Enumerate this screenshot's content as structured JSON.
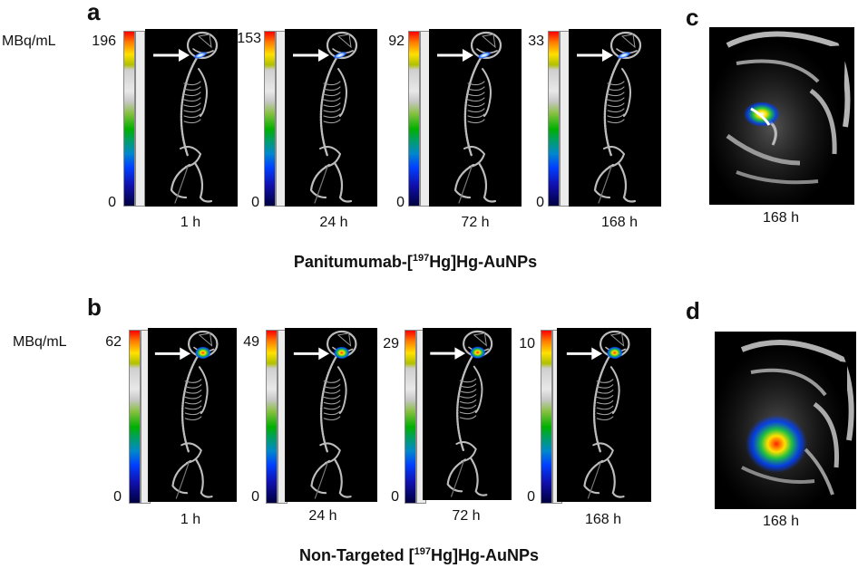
{
  "panels": {
    "a": {
      "letter": "a",
      "unit": "MBq/mL",
      "scans": [
        {
          "max": "196",
          "min": "0",
          "time": "1 h"
        },
        {
          "max": "153",
          "min": "0",
          "time": "24 h"
        },
        {
          "max": "92",
          "min": "0",
          "time": "72 h"
        },
        {
          "max": "33",
          "min": "0",
          "time": "168 h"
        }
      ],
      "caption": {
        "pre": "Panitumumab-[",
        "sup": "197",
        "post": "Hg]Hg-AuNPs"
      }
    },
    "b": {
      "letter": "b",
      "unit": "MBq/mL",
      "scans": [
        {
          "max": "62",
          "min": "0",
          "time": "1 h"
        },
        {
          "max": "49",
          "min": "0",
          "time": "24 h"
        },
        {
          "max": "29",
          "min": "0",
          "time": "72 h"
        },
        {
          "max": "10",
          "min": "0",
          "time": "168 h"
        }
      ],
      "caption": {
        "pre": "Non-Targeted [",
        "sup": "197",
        "post": "Hg]Hg-AuNPs"
      }
    },
    "c": {
      "letter": "c",
      "time": "168 h"
    },
    "d": {
      "letter": "d",
      "time": "168 h"
    }
  },
  "colors": {
    "background": "#000000",
    "bone": "#bdbdbd",
    "arrow": "#ffffff",
    "hotspot_hot": "#ff3000",
    "hotspot_warm": "#ffe000",
    "hotspot_mid": "#00c040",
    "hotspot_cool": "#0050ff"
  }
}
